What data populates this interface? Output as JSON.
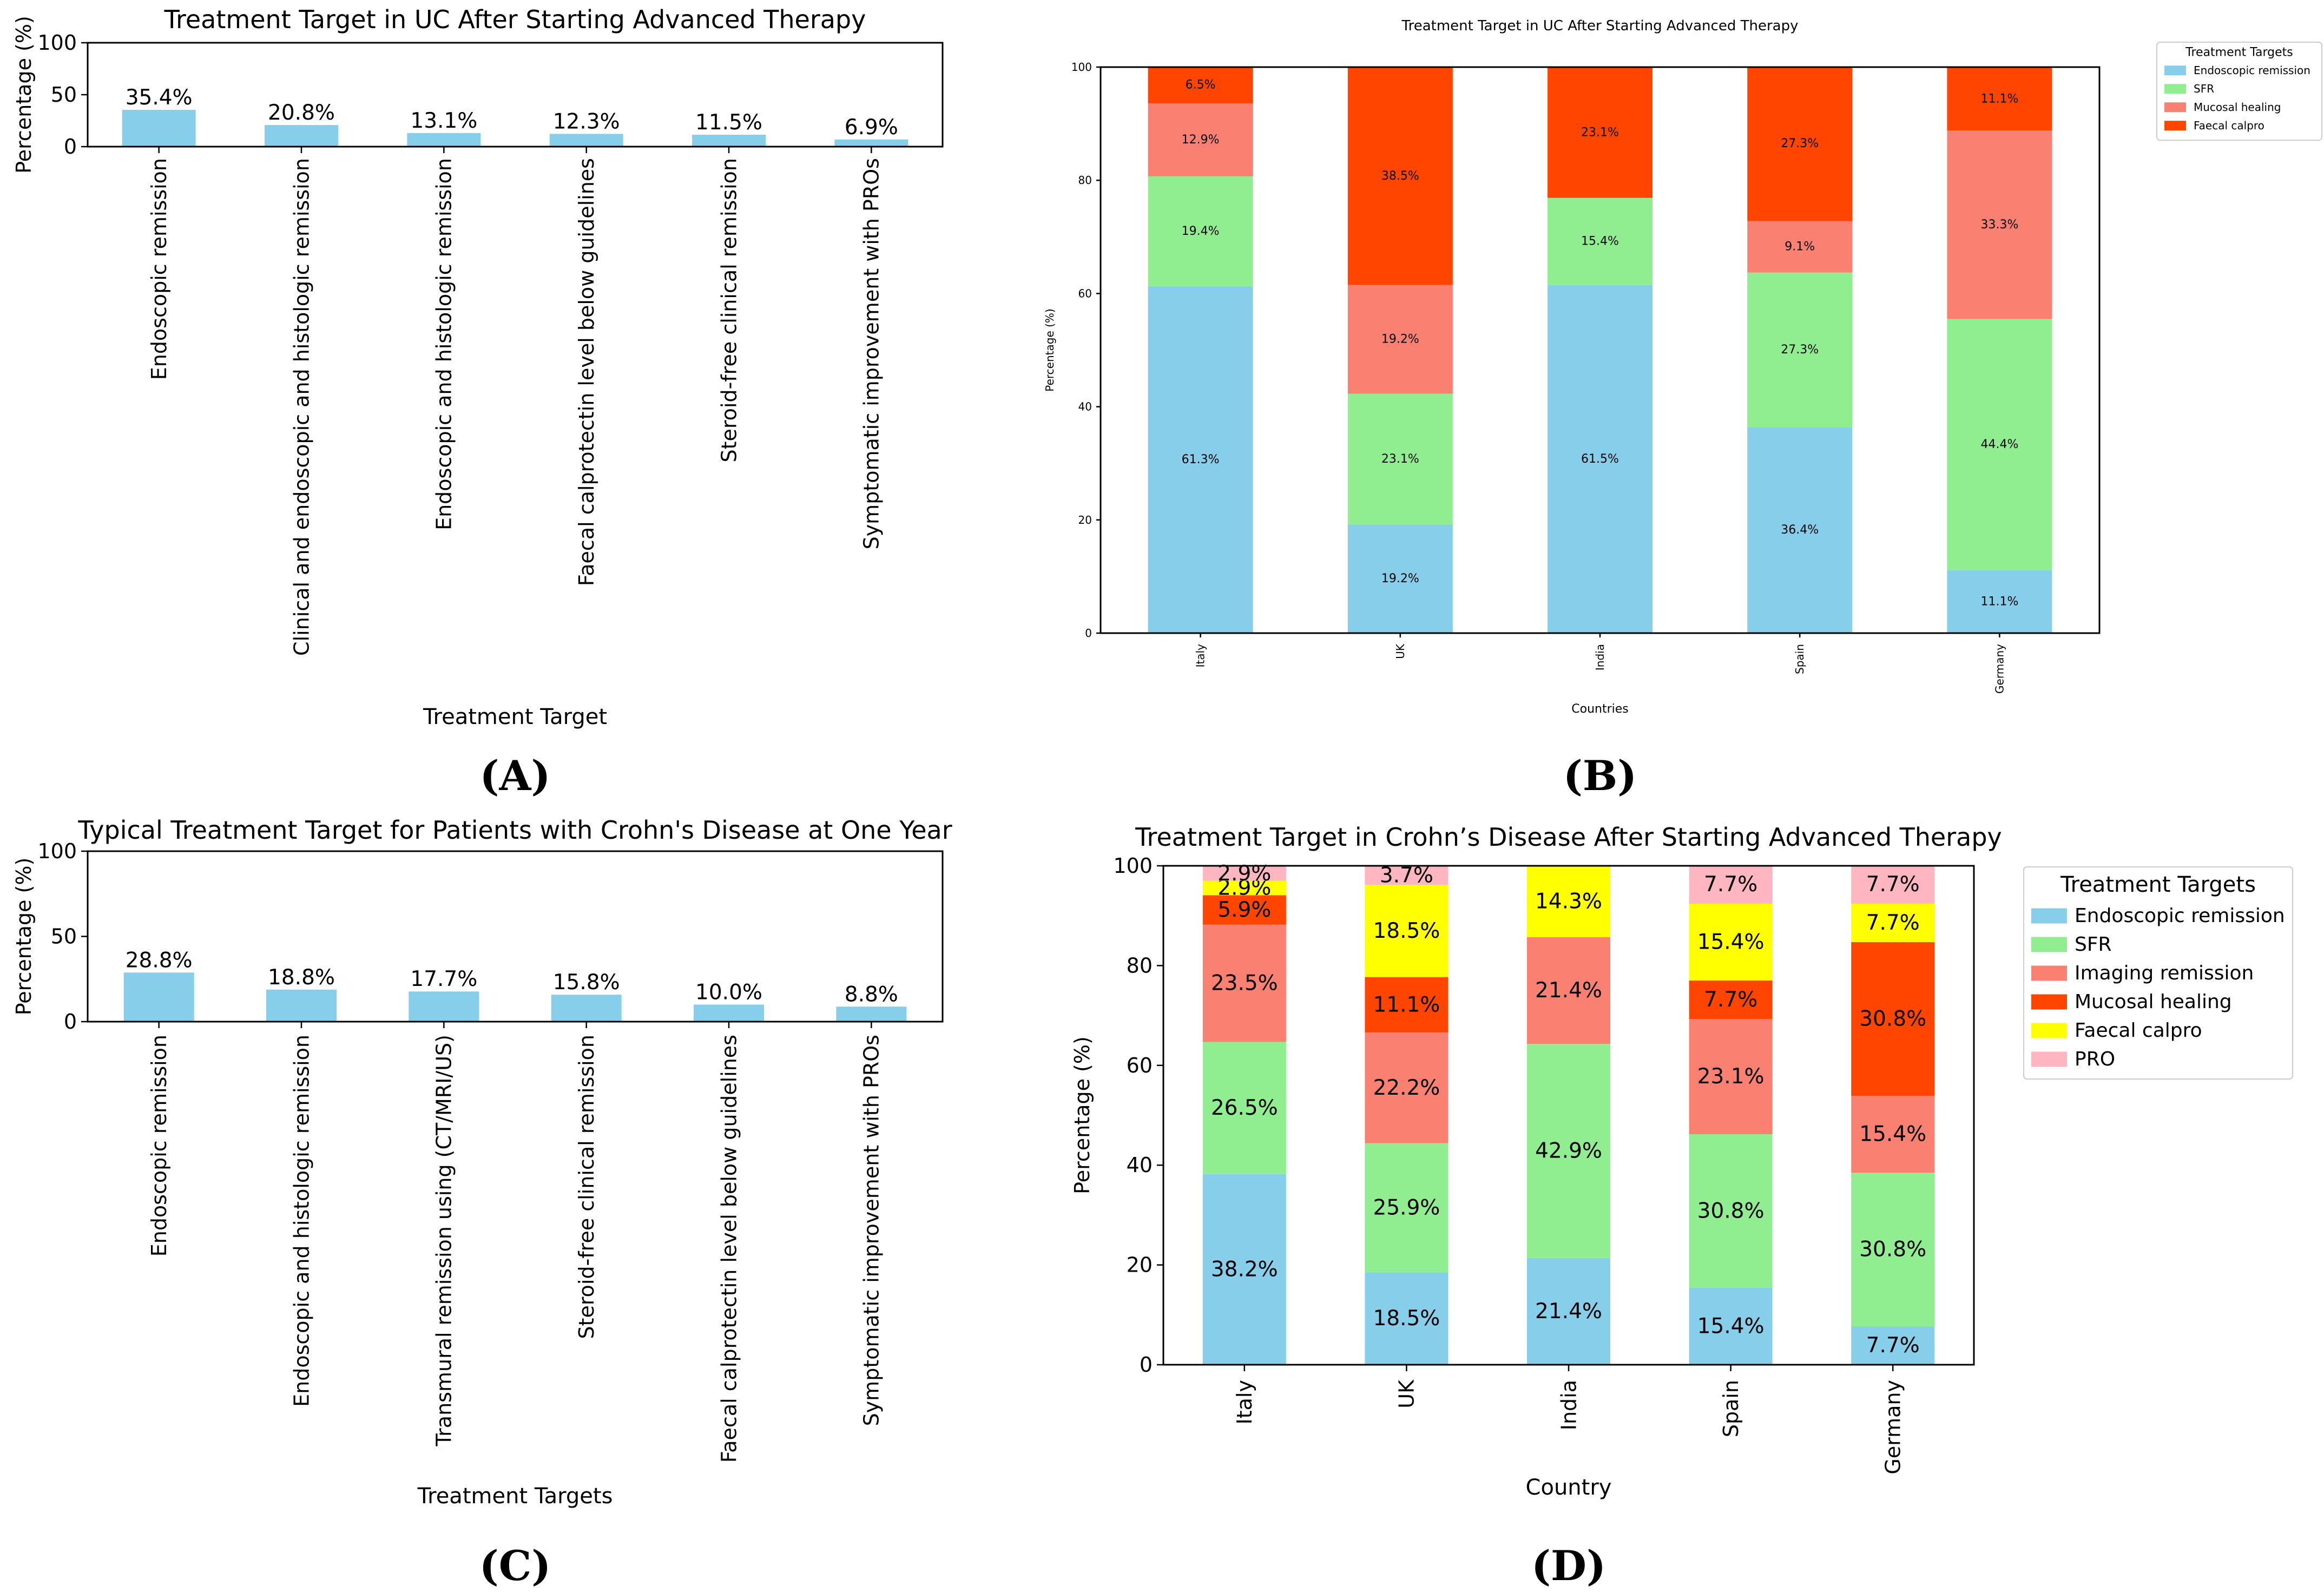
{
  "chart_data": [
    {
      "id": "A",
      "type": "bar",
      "title": "Treatment Target in UC After Starting Advanced Therapy",
      "xlabel": "Treatment Target",
      "ylabel": "Percentage (%)",
      "ylim": [
        0,
        100
      ],
      "yticks": [
        0,
        50,
        100
      ],
      "grid": false,
      "legend": "none",
      "categories": [
        "Endoscopic remission",
        "Clinical and endoscopic and histologic remission",
        "Endoscopic and histologic remission",
        "Faecal calprotectin level below guidelines",
        "Steroid-free clinical remission",
        "Symptomatic improvement with PROs"
      ],
      "values": [
        35.4,
        20.8,
        13.1,
        12.3,
        11.5,
        6.9
      ],
      "labels": [
        "35.4%",
        "20.8%",
        "13.1%",
        "12.3%",
        "11.5%",
        "6.9%"
      ],
      "colors": [
        "#87ceeb"
      ],
      "panel_label": "(A)"
    },
    {
      "id": "B",
      "type": "bar",
      "stacked": true,
      "title": "Treatment Target in UC After Starting Advanced Therapy",
      "xlabel": "Countries",
      "ylabel": "Percentage (%)",
      "ylim": [
        0,
        100
      ],
      "yticks": [
        0,
        20,
        40,
        60,
        80,
        100
      ],
      "grid": false,
      "legend": "outside-right",
      "legend_title": "Treatment Targets",
      "categories": [
        "Italy",
        "UK",
        "India",
        "Spain",
        "Germany"
      ],
      "series": [
        {
          "name": "Endoscopic remission",
          "color": "#87ceeb",
          "values": [
            61.3,
            19.2,
            61.5,
            36.4,
            11.1
          ],
          "labels": [
            "61.3%",
            "19.2%",
            "61.5%",
            "36.4%",
            "11.1%"
          ]
        },
        {
          "name": "SFR",
          "color": "#90ee90",
          "values": [
            19.4,
            23.1,
            15.4,
            27.3,
            44.4
          ],
          "labels": [
            "19.4%",
            "23.1%",
            "15.4%",
            "27.3%",
            "44.4%"
          ]
        },
        {
          "name": "Mucosal healing",
          "color": "#fa8072",
          "values": [
            12.9,
            19.2,
            0,
            9.1,
            33.3
          ],
          "labels": [
            "12.9%",
            "19.2%",
            "",
            "9.1%",
            "33.3%"
          ]
        },
        {
          "name": "Faecal calpro",
          "color": "#ff4500",
          "values": [
            6.5,
            38.5,
            23.1,
            27.3,
            11.1
          ],
          "labels": [
            "6.5%",
            "38.5%",
            "23.1%",
            "27.3%",
            "11.1%"
          ]
        }
      ],
      "panel_label": "(B)"
    },
    {
      "id": "C",
      "type": "bar",
      "title": "Typical Treatment Target for Patients with Crohn's Disease at One Year",
      "xlabel": "Treatment Targets",
      "ylabel": "Percentage (%)",
      "ylim": [
        0,
        100
      ],
      "yticks": [
        0,
        50,
        100
      ],
      "grid": false,
      "legend": "none",
      "categories": [
        "Endoscopic remission",
        "Endoscopic and histologic remission",
        "Transmural remission using (CT/MRI/US)",
        "Steroid-free clinical remission",
        "Faecal calprotectin level below guidelines",
        "Symptomatic improvement with PROs"
      ],
      "values": [
        28.8,
        18.8,
        17.7,
        15.8,
        10.0,
        8.8
      ],
      "labels": [
        "28.8%",
        "18.8%",
        "17.7%",
        "15.8%",
        "10.0%",
        "8.8%"
      ],
      "colors": [
        "#87ceeb"
      ],
      "panel_label": "(C)"
    },
    {
      "id": "D",
      "type": "bar",
      "stacked": true,
      "title": "Treatment Target in Crohn’s Disease After Starting Advanced Therapy",
      "xlabel": "Country",
      "ylabel": "Percentage (%)",
      "ylim": [
        0,
        100
      ],
      "yticks": [
        0,
        20,
        40,
        60,
        80,
        100
      ],
      "grid": false,
      "legend": "outside-right",
      "legend_title": "Treatment Targets",
      "categories": [
        "Italy",
        "UK",
        "India",
        "Spain",
        "Germany"
      ],
      "series": [
        {
          "name": "Endoscopic remission",
          "color": "#87ceeb",
          "values": [
            38.2,
            18.5,
            21.4,
            15.4,
            7.7
          ],
          "labels": [
            "38.2%",
            "18.5%",
            "21.4%",
            "15.4%",
            "7.7%"
          ]
        },
        {
          "name": "SFR",
          "color": "#90ee90",
          "values": [
            26.5,
            25.9,
            42.9,
            30.8,
            30.8
          ],
          "labels": [
            "26.5%",
            "25.9%",
            "42.9%",
            "30.8%",
            "30.8%"
          ]
        },
        {
          "name": "Imaging remission",
          "color": "#fa8072",
          "values": [
            23.5,
            22.2,
            21.4,
            23.1,
            15.4
          ],
          "labels": [
            "23.5%",
            "22.2%",
            "21.4%",
            "23.1%",
            "15.4%"
          ]
        },
        {
          "name": "Mucosal healing",
          "color": "#ff4500",
          "values": [
            5.9,
            11.1,
            0,
            7.7,
            30.8
          ],
          "labels": [
            "5.9%",
            "11.1%",
            "",
            "7.7%",
            "30.8%"
          ]
        },
        {
          "name": "Faecal calpro",
          "color": "#ffff00",
          "values": [
            2.9,
            18.5,
            14.3,
            15.4,
            7.7
          ],
          "labels": [
            "2.9%",
            "18.5%",
            "14.3%",
            "15.4%",
            "7.7%"
          ]
        },
        {
          "name": "PRO",
          "color": "#ffb6c1",
          "values": [
            2.9,
            3.7,
            0,
            7.7,
            7.7
          ],
          "labels": [
            "2.9%",
            "3.7%",
            "",
            "7.7%",
            "7.7%"
          ]
        }
      ],
      "panel_label": "(D)"
    }
  ]
}
